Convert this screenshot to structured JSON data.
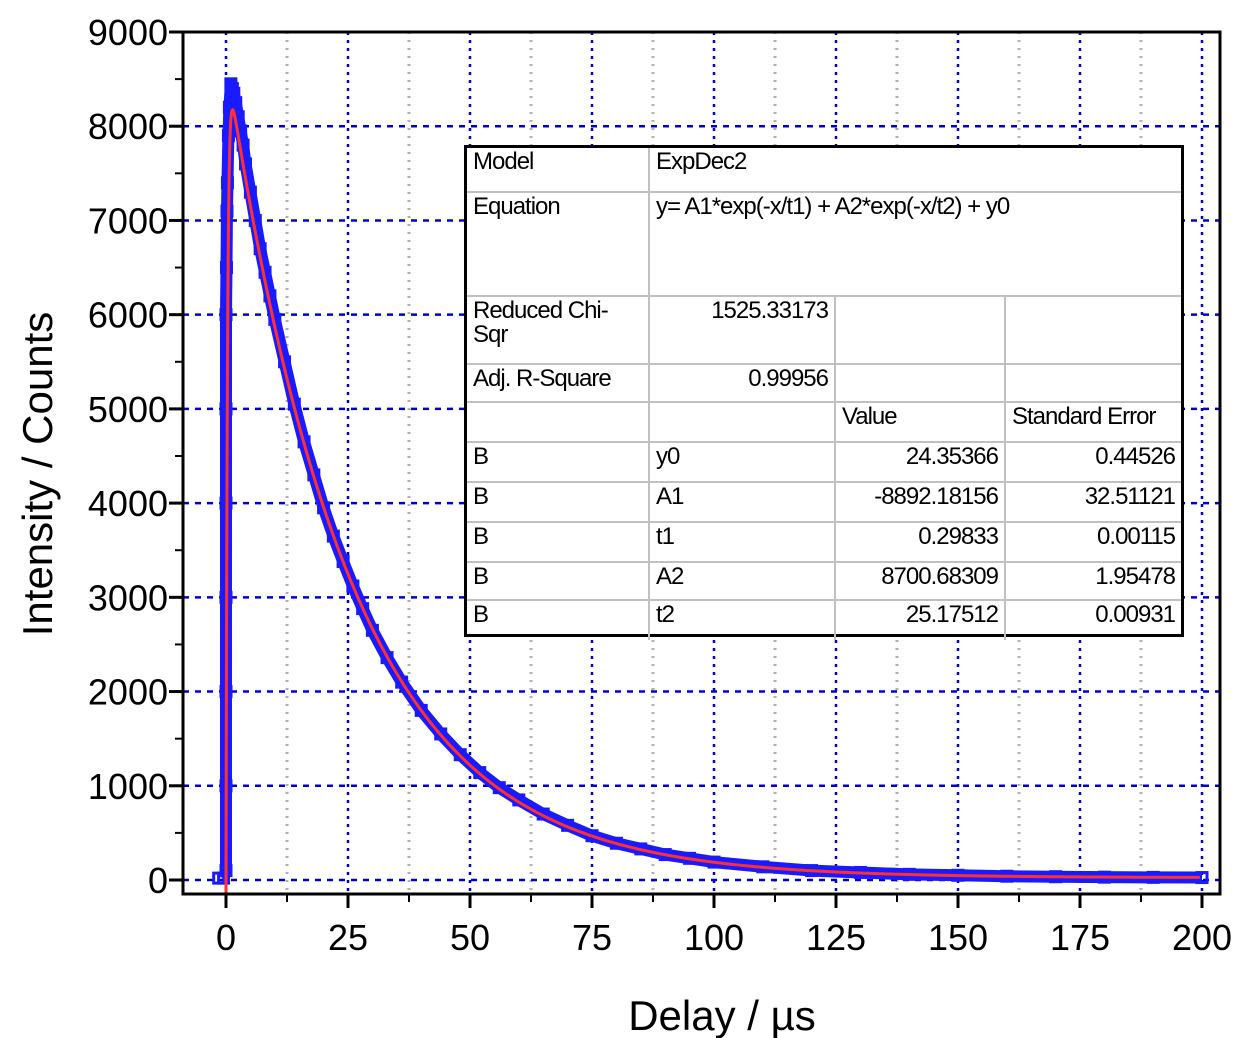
{
  "chart_data": {
    "type": "scatter",
    "xlabel": "Delay / µs",
    "ylabel": "Intensity / Counts",
    "xlim": [
      -5,
      200
    ],
    "ylim": [
      -100,
      9000
    ],
    "x_ticks": [
      "0",
      "25",
      "50",
      "75",
      "100",
      "125",
      "150",
      "175",
      "200"
    ],
    "x_tick_values": [
      0,
      25,
      50,
      75,
      100,
      125,
      150,
      175,
      200
    ],
    "y_ticks": [
      "0",
      "1000",
      "2000",
      "3000",
      "4000",
      "5000",
      "6000",
      "7000",
      "8000",
      "9000"
    ],
    "y_tick_values": [
      0,
      1000,
      2000,
      3000,
      4000,
      5000,
      6000,
      7000,
      8000,
      9000
    ],
    "grid": true,
    "colors": {
      "data": "#1a1aff",
      "fit": "#ff3030",
      "major_grid": "#0000cc",
      "minor_grid": "#b0b0b0"
    },
    "series": [
      {
        "kind": "data-points",
        "x": [
          -1.5,
          -0.5,
          0,
          0,
          0,
          0,
          0,
          0,
          0,
          0.1,
          0.2,
          0.3,
          0.5,
          0.7,
          1,
          1.3,
          1.6,
          2,
          2.5,
          3,
          3.5,
          4,
          5,
          6,
          7,
          8,
          9,
          10,
          12,
          14,
          16,
          18,
          20,
          22,
          24,
          26,
          28,
          30,
          33,
          36,
          40,
          44,
          48,
          52,
          56,
          60,
          65,
          70,
          75,
          80,
          85,
          90,
          95,
          100,
          110,
          120,
          130,
          140,
          150,
          160,
          170,
          180,
          190,
          200
        ],
        "y": [
          20,
          20,
          100,
          1000,
          2000,
          3000,
          4000,
          5000,
          6000,
          6500,
          7100,
          7400,
          7900,
          8200,
          8450,
          8400,
          8350,
          8250,
          8100,
          7950,
          7800,
          7600,
          7300,
          7000,
          6700,
          6450,
          6200,
          5950,
          5500,
          5050,
          4650,
          4300,
          3950,
          3650,
          3380,
          3120,
          2880,
          2650,
          2360,
          2100,
          1800,
          1550,
          1330,
          1140,
          980,
          850,
          700,
          580,
          470,
          390,
          330,
          270,
          230,
          190,
          140,
          100,
          80,
          60,
          50,
          40,
          35,
          30,
          28,
          26
        ]
      },
      {
        "kind": "fit-curve",
        "model": "ExpDec2",
        "y0": 24.35366,
        "A1": -8892.18156,
        "t1": 0.29833,
        "A2": 8700.68309,
        "t2": 25.17512,
        "x_start": 0,
        "x_end": 200
      }
    ]
  },
  "fit_table": {
    "model_label": "Model",
    "model_value": "ExpDec2",
    "equation_label": "Equation",
    "equation_value": "y= A1*exp(-x/t1) + A2*exp(-x/t2) + y0",
    "chisq_label": "Reduced Chi-Sqr",
    "chisq_value": "1525.33173",
    "r2_label": "Adj. R-Square",
    "r2_value": "0.99956",
    "col_value": "Value",
    "col_error": "Standard Error",
    "rows": [
      {
        "dataset": "B",
        "param": "y0",
        "value": "24.35366",
        "error": "0.44526"
      },
      {
        "dataset": "B",
        "param": "A1",
        "value": "-8892.18156",
        "error": "32.51121"
      },
      {
        "dataset": "B",
        "param": "t1",
        "value": "0.29833",
        "error": "0.00115"
      },
      {
        "dataset": "B",
        "param": "A2",
        "value": "8700.68309",
        "error": "1.95478"
      },
      {
        "dataset": "B",
        "param": "t2",
        "value": "25.17512",
        "error": "0.00931"
      }
    ]
  }
}
